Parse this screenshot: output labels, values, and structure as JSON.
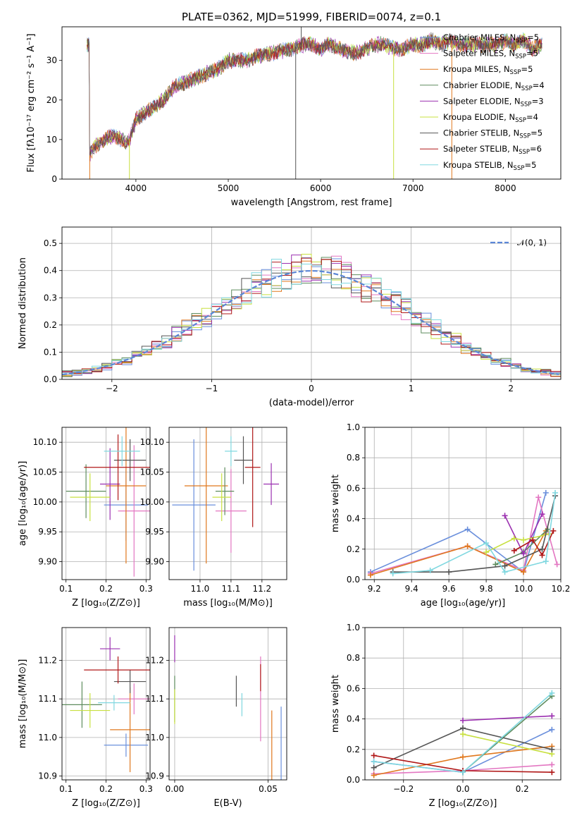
{
  "figure_title": "PLATE=0362, MJD=51999, FIBERID=0074, z=0.1",
  "colors": {
    "Chabrier MILES": "#6a8fdc",
    "Salpeter MILES": "#e377c2",
    "Kroupa MILES": "#e0781e",
    "Chabrier ELODIE": "#5e8c5e",
    "Salpeter ELODIE": "#9b30b0",
    "Kroupa ELODIE": "#c8e040",
    "Chabrier STELIB": "#555555",
    "Salpeter STELIB": "#b01818",
    "Kroupa STELIB": "#80d8e0",
    "gauss": "#5b86d6"
  },
  "legend_entries": [
    {
      "model": "Chabrier MILES",
      "text": "Chabrier MILES, N",
      "sub": "SSP",
      "tail": "=5"
    },
    {
      "model": "Salpeter MILES",
      "text": "Salpeter MILES, N",
      "sub": "SSP",
      "tail": "=5"
    },
    {
      "model": "Kroupa MILES",
      "text": "Kroupa MILES, N",
      "sub": "SSP",
      "tail": "=5"
    },
    {
      "model": "Chabrier ELODIE",
      "text": "Chabrier ELODIE, N",
      "sub": "SSP",
      "tail": "=4"
    },
    {
      "model": "Salpeter ELODIE",
      "text": "Salpeter ELODIE, N",
      "sub": "SSP",
      "tail": "=3"
    },
    {
      "model": "Kroupa ELODIE",
      "text": "Kroupa ELODIE, N",
      "sub": "SSP",
      "tail": "=4"
    },
    {
      "model": "Chabrier STELIB",
      "text": "Chabrier STELIB, N",
      "sub": "SSP",
      "tail": "=5"
    },
    {
      "model": "Salpeter STELIB",
      "text": "Salpeter STELIB, N",
      "sub": "SSP",
      "tail": "=6"
    },
    {
      "model": "Kroupa STELIB",
      "text": "Kroupa STELIB, N",
      "sub": "SSP",
      "tail": "=5"
    }
  ],
  "chart_data": [
    {
      "id": "spectrum",
      "type": "line",
      "xlabel": "wavelength [Angstrom, rest frame]",
      "ylabel": "Flux [fλ10⁻¹⁷ erg cm⁻² s⁻¹ A⁻¹]",
      "xlim": [
        3200,
        8600
      ],
      "ylim": [
        0,
        38.5
      ],
      "xticks": [
        4000,
        5000,
        6000,
        7000,
        8000
      ],
      "yticks": [
        0,
        10,
        20,
        30
      ],
      "spectrum_anchor_points": [
        [
          3500,
          6
        ],
        [
          3550,
          8
        ],
        [
          3650,
          10
        ],
        [
          3750,
          11
        ],
        [
          3850,
          10
        ],
        [
          3900,
          9
        ],
        [
          3950,
          11
        ],
        [
          4000,
          15
        ],
        [
          4100,
          17
        ],
        [
          4200,
          18
        ],
        [
          4300,
          20
        ],
        [
          4400,
          23
        ],
        [
          4500,
          24
        ],
        [
          4600,
          25
        ],
        [
          4700,
          26
        ],
        [
          4800,
          27
        ],
        [
          4900,
          28
        ],
        [
          5000,
          30
        ],
        [
          5100,
          30
        ],
        [
          5200,
          30
        ],
        [
          5300,
          31
        ],
        [
          5400,
          31.5
        ],
        [
          5500,
          32
        ],
        [
          5600,
          32.5
        ],
        [
          5700,
          33
        ],
        [
          5800,
          34
        ],
        [
          5900,
          34
        ],
        [
          6000,
          33
        ],
        [
          6100,
          34
        ],
        [
          6200,
          33
        ],
        [
          6300,
          32
        ],
        [
          6400,
          32
        ],
        [
          6500,
          33
        ],
        [
          6600,
          34
        ],
        [
          6700,
          34
        ],
        [
          6800,
          33
        ],
        [
          6900,
          33
        ],
        [
          7000,
          34
        ],
        [
          7100,
          34
        ],
        [
          7200,
          35
        ],
        [
          7300,
          34
        ],
        [
          7400,
          35
        ],
        [
          7500,
          34
        ],
        [
          7600,
          34
        ],
        [
          7700,
          34
        ],
        [
          7800,
          34
        ],
        [
          7900,
          34
        ],
        [
          8000,
          35
        ],
        [
          8100,
          34
        ],
        [
          8200,
          35
        ],
        [
          8300,
          33
        ],
        [
          8400,
          34
        ]
      ],
      "spike_features": [
        [
          3500,
          "low"
        ],
        [
          3930,
          "low"
        ],
        [
          5730,
          "low"
        ],
        [
          5790,
          "high"
        ],
        [
          6790,
          "low"
        ],
        [
          7420,
          "low"
        ]
      ],
      "legend_position": "upper right"
    },
    {
      "id": "residuals",
      "type": "line",
      "xlabel": "(data-model)/error",
      "ylabel": "Normed distribution",
      "xlim": [
        -2.5,
        2.5
      ],
      "ylim": [
        0,
        0.56
      ],
      "xticks": [
        -2,
        -1,
        0,
        1,
        2
      ],
      "yticks": [
        0.0,
        0.1,
        0.2,
        0.3,
        0.4,
        0.5
      ],
      "gaussian_label": "𝒩(0, 1)",
      "legend_position": "upper right"
    },
    {
      "id": "age_vs_Z",
      "type": "scatter",
      "xlabel": "Z [log₁₀(Z/Z⊙)]",
      "ylabel": "age  [log₁₀(age/yr)]",
      "xlim": [
        0.09,
        0.31
      ],
      "ylim": [
        9.87,
        10.125
      ],
      "xticks": [
        0.1,
        0.2,
        0.3
      ],
      "yticks": [
        9.9,
        9.95,
        10.0,
        10.05,
        10.1
      ],
      "points": [
        {
          "model": "Chabrier MILES",
          "x": 0.25,
          "y": 9.995,
          "xerr": 0.055,
          "yerr": 0.06
        },
        {
          "model": "Salpeter MILES",
          "x": 0.27,
          "y": 9.985,
          "xerr": 0.04,
          "yerr": 0.11
        },
        {
          "model": "Kroupa MILES",
          "x": 0.25,
          "y": 10.027,
          "xerr": 0.05,
          "yerr": 0.13
        },
        {
          "model": "Chabrier ELODIE",
          "x": 0.15,
          "y": 10.018,
          "xerr": 0.05,
          "yerr": 0.045
        },
        {
          "model": "Salpeter ELODIE",
          "x": 0.21,
          "y": 10.03,
          "xerr": 0.025,
          "yerr": 0.06
        },
        {
          "model": "Kroupa ELODIE",
          "x": 0.16,
          "y": 10.008,
          "xerr": 0.05,
          "yerr": 0.04
        },
        {
          "model": "Chabrier STELIB",
          "x": 0.26,
          "y": 10.07,
          "xerr": 0.04,
          "yerr": 0.035
        },
        {
          "model": "Salpeter STELIB",
          "x": 0.23,
          "y": 10.058,
          "xerr": 0.085,
          "yerr": 0.055
        },
        {
          "model": "Kroupa STELIB",
          "x": 0.24,
          "y": 10.085,
          "xerr": 0.045,
          "yerr": 0.025
        }
      ]
    },
    {
      "id": "age_vs_mass",
      "type": "scatter",
      "xlabel": "mass [log₁₀(M/M⊙)]",
      "ylabel": "",
      "xlim": [
        10.9,
        11.28
      ],
      "ylim": [
        9.87,
        10.125
      ],
      "xticks": [
        11.0,
        11.1,
        11.2
      ],
      "yticks": [
        9.9,
        9.95,
        10.0,
        10.05,
        10.1
      ],
      "points": [
        {
          "model": "Chabrier MILES",
          "x": 10.98,
          "y": 9.995,
          "xerr": 0.07,
          "yerr": 0.11
        },
        {
          "model": "Salpeter MILES",
          "x": 11.1,
          "y": 9.985,
          "xerr": 0.05,
          "yerr": 0.07
        },
        {
          "model": "Kroupa MILES",
          "x": 11.02,
          "y": 10.027,
          "xerr": 0.07,
          "yerr": 0.13
        },
        {
          "model": "Chabrier ELODIE",
          "x": 11.08,
          "y": 10.018,
          "xerr": 0.03,
          "yerr": 0.04
        },
        {
          "model": "Salpeter ELODIE",
          "x": 11.23,
          "y": 10.03,
          "xerr": 0.025,
          "yerr": 0.035
        },
        {
          "model": "Kroupa ELODIE",
          "x": 11.07,
          "y": 10.008,
          "xerr": 0.03,
          "yerr": 0.04
        },
        {
          "model": "Chabrier STELIB",
          "x": 11.14,
          "y": 10.07,
          "xerr": 0.03,
          "yerr": 0.04
        },
        {
          "model": "Salpeter STELIB",
          "x": 11.17,
          "y": 10.058,
          "xerr": 0.025,
          "yerr": 0.1
        },
        {
          "model": "Kroupa STELIB",
          "x": 11.1,
          "y": 10.085,
          "xerr": 0.02,
          "yerr": 0.025
        }
      ]
    },
    {
      "id": "mass_weight_vs_age",
      "type": "line",
      "xlabel": "age  [log₁₀(age/yr)]",
      "ylabel": "mass weight",
      "xlim": [
        9.15,
        10.2
      ],
      "ylim": [
        0,
        1.0
      ],
      "xticks": [
        9.2,
        9.4,
        9.6,
        9.8,
        10.0,
        10.2
      ],
      "yticks": [
        0.0,
        0.2,
        0.4,
        0.6,
        0.8,
        1.0
      ],
      "series": [
        {
          "model": "Chabrier MILES",
          "x": [
            9.18,
            9.7,
            10.0,
            10.12
          ],
          "y": [
            0.05,
            0.33,
            0.05,
            0.57
          ]
        },
        {
          "model": "Salpeter MILES",
          "x": [
            9.18,
            9.7,
            10.0,
            10.08,
            10.18
          ],
          "y": [
            0.04,
            0.22,
            0.06,
            0.54,
            0.1
          ]
        },
        {
          "model": "Kroupa MILES",
          "x": [
            9.18,
            9.7,
            10.0,
            10.12
          ],
          "y": [
            0.03,
            0.22,
            0.05,
            0.32
          ]
        },
        {
          "model": "Chabrier ELODIE",
          "x": [
            9.85,
            10.0,
            10.13
          ],
          "y": [
            0.1,
            0.18,
            0.33
          ]
        },
        {
          "model": "Salpeter ELODIE",
          "x": [
            9.9,
            10.0,
            10.1
          ],
          "y": [
            0.42,
            0.17,
            0.43
          ]
        },
        {
          "model": "Kroupa ELODIE",
          "x": [
            9.8,
            9.95,
            10.0,
            10.14
          ],
          "y": [
            0.18,
            0.27,
            0.26,
            0.3
          ]
        },
        {
          "model": "Chabrier STELIB",
          "x": [
            9.3,
            9.6,
            9.9,
            10.1,
            10.17
          ],
          "y": [
            0.05,
            0.05,
            0.09,
            0.2,
            0.55
          ]
        },
        {
          "model": "Salpeter STELIB",
          "x": [
            9.95,
            10.05,
            10.1,
            10.16
          ],
          "y": [
            0.19,
            0.26,
            0.16,
            0.32
          ]
        },
        {
          "model": "Kroupa STELIB",
          "x": [
            9.3,
            9.5,
            9.8,
            9.9,
            10.12,
            10.17
          ],
          "y": [
            0.04,
            0.06,
            0.24,
            0.05,
            0.12,
            0.57
          ]
        }
      ]
    },
    {
      "id": "mass_vs_Z",
      "type": "scatter",
      "xlabel": "Z [log₁₀(Z/Z⊙)]",
      "ylabel": "mass [log₁₀(M/M⊙)]",
      "xlim": [
        0.09,
        0.31
      ],
      "ylim": [
        10.89,
        11.285
      ],
      "xticks": [
        0.1,
        0.2,
        0.3
      ],
      "yticks": [
        10.9,
        11.0,
        11.1,
        11.2
      ],
      "points": [
        {
          "model": "Chabrier MILES",
          "x": 0.25,
          "y": 10.98,
          "xerr": 0.055,
          "yerr": 0.03
        },
        {
          "model": "Salpeter MILES",
          "x": 0.27,
          "y": 11.1,
          "xerr": 0.04,
          "yerr": 0.04
        },
        {
          "model": "Kroupa MILES",
          "x": 0.26,
          "y": 11.02,
          "xerr": 0.05,
          "yerr": 0.11
        },
        {
          "model": "Chabrier ELODIE",
          "x": 0.14,
          "y": 11.085,
          "xerr": 0.05,
          "yerr": 0.06
        },
        {
          "model": "Salpeter ELODIE",
          "x": 0.21,
          "y": 11.23,
          "xerr": 0.025,
          "yerr": 0.03
        },
        {
          "model": "Kroupa ELODIE",
          "x": 0.16,
          "y": 11.07,
          "xerr": 0.05,
          "yerr": 0.045
        },
        {
          "model": "Chabrier STELIB",
          "x": 0.26,
          "y": 11.145,
          "xerr": 0.04,
          "yerr": 0.03
        },
        {
          "model": "Salpeter STELIB",
          "x": 0.23,
          "y": 11.175,
          "xerr": 0.085,
          "yerr": 0.035
        },
        {
          "model": "Kroupa STELIB",
          "x": 0.22,
          "y": 11.09,
          "xerr": 0.04,
          "yerr": 0.02
        }
      ]
    },
    {
      "id": "mass_vs_EBV",
      "type": "scatter",
      "xlabel": "E(B-V)",
      "ylabel": "",
      "xlim": [
        -0.003,
        0.06
      ],
      "ylim": [
        10.89,
        11.285
      ],
      "xticks": [
        0.0,
        0.05
      ],
      "yticks": [
        10.9,
        11.0,
        11.1,
        11.2
      ],
      "points": [
        {
          "model": "Chabrier MILES",
          "x": 0.057,
          "y": 10.98,
          "xerr": 0,
          "yerr": 0.1
        },
        {
          "model": "Salpeter MILES",
          "x": 0.046,
          "y": 11.1,
          "xerr": 0,
          "yerr": 0.11
        },
        {
          "model": "Kroupa MILES",
          "x": 0.052,
          "y": 10.98,
          "xerr": 0,
          "yerr": 0.09
        },
        {
          "model": "Chabrier ELODIE",
          "x": 0.0,
          "y": 11.1,
          "xerr": 0,
          "yerr": 0.06
        },
        {
          "model": "Salpeter ELODIE",
          "x": 0.0,
          "y": 11.23,
          "xerr": 0,
          "yerr": 0.035
        },
        {
          "model": "Kroupa ELODIE",
          "x": 0.0,
          "y": 11.08,
          "xerr": 0,
          "yerr": 0.045
        },
        {
          "model": "Chabrier STELIB",
          "x": 0.033,
          "y": 11.12,
          "xerr": 0,
          "yerr": 0.04
        },
        {
          "model": "Salpeter STELIB",
          "x": 0.046,
          "y": 11.155,
          "xerr": 0,
          "yerr": 0.035
        },
        {
          "model": "Kroupa STELIB",
          "x": 0.036,
          "y": 11.085,
          "xerr": 0,
          "yerr": 0.03
        }
      ]
    },
    {
      "id": "mass_weight_vs_Z",
      "type": "line",
      "xlabel": "Z [log₁₀(Z/Z⊙)]",
      "ylabel": "mass weight",
      "xlim": [
        -0.33,
        0.33
      ],
      "ylim": [
        0,
        1.0
      ],
      "xticks": [
        -0.2,
        0.0,
        0.2
      ],
      "yticks": [
        0.0,
        0.2,
        0.4,
        0.6,
        0.8,
        1.0
      ],
      "series": [
        {
          "model": "Chabrier MILES",
          "x": [
            -0.3,
            0.0,
            0.3
          ],
          "y": [
            0.12,
            0.05,
            0.33
          ]
        },
        {
          "model": "Salpeter MILES",
          "x": [
            -0.3,
            0.0,
            0.3
          ],
          "y": [
            0.04,
            0.06,
            0.1
          ]
        },
        {
          "model": "Kroupa MILES",
          "x": [
            -0.3,
            0.0,
            0.3
          ],
          "y": [
            0.03,
            0.15,
            0.22
          ]
        },
        {
          "model": "Chabrier ELODIE",
          "x": [
            0.0,
            0.3
          ],
          "y": [
            0.05,
            0.55
          ]
        },
        {
          "model": "Salpeter ELODIE",
          "x": [
            0.0,
            0.3
          ],
          "y": [
            0.39,
            0.42
          ]
        },
        {
          "model": "Kroupa ELODIE",
          "x": [
            0.0,
            0.3
          ],
          "y": [
            0.3,
            0.17
          ]
        },
        {
          "model": "Chabrier STELIB",
          "x": [
            -0.3,
            0.0,
            0.3
          ],
          "y": [
            0.08,
            0.34,
            0.2
          ]
        },
        {
          "model": "Salpeter STELIB",
          "x": [
            -0.3,
            0.0,
            0.3
          ],
          "y": [
            0.16,
            0.06,
            0.05
          ]
        },
        {
          "model": "Kroupa STELIB",
          "x": [
            -0.3,
            0.0,
            0.3
          ],
          "y": [
            0.12,
            0.05,
            0.57
          ]
        }
      ]
    }
  ]
}
